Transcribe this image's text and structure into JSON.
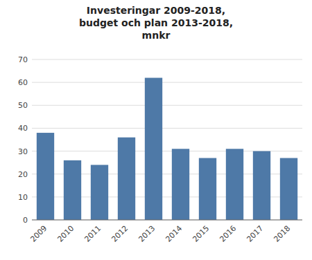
{
  "chart_data": {
    "type": "bar",
    "title": "Investeringar 2009-2018,\nbudget och plan 2013-2018,\nmnkr",
    "categories": [
      "2009",
      "2010",
      "2011",
      "2012",
      "2013",
      "2014",
      "2015",
      "2016",
      "2017",
      "2018"
    ],
    "values": [
      38,
      26,
      24,
      36,
      62,
      31,
      27,
      31,
      30,
      27
    ],
    "color": "#4e79a7",
    "ylim": [
      0,
      70
    ],
    "yticks": [
      0,
      10,
      20,
      30,
      40,
      50,
      60,
      70
    ],
    "grid": true
  }
}
